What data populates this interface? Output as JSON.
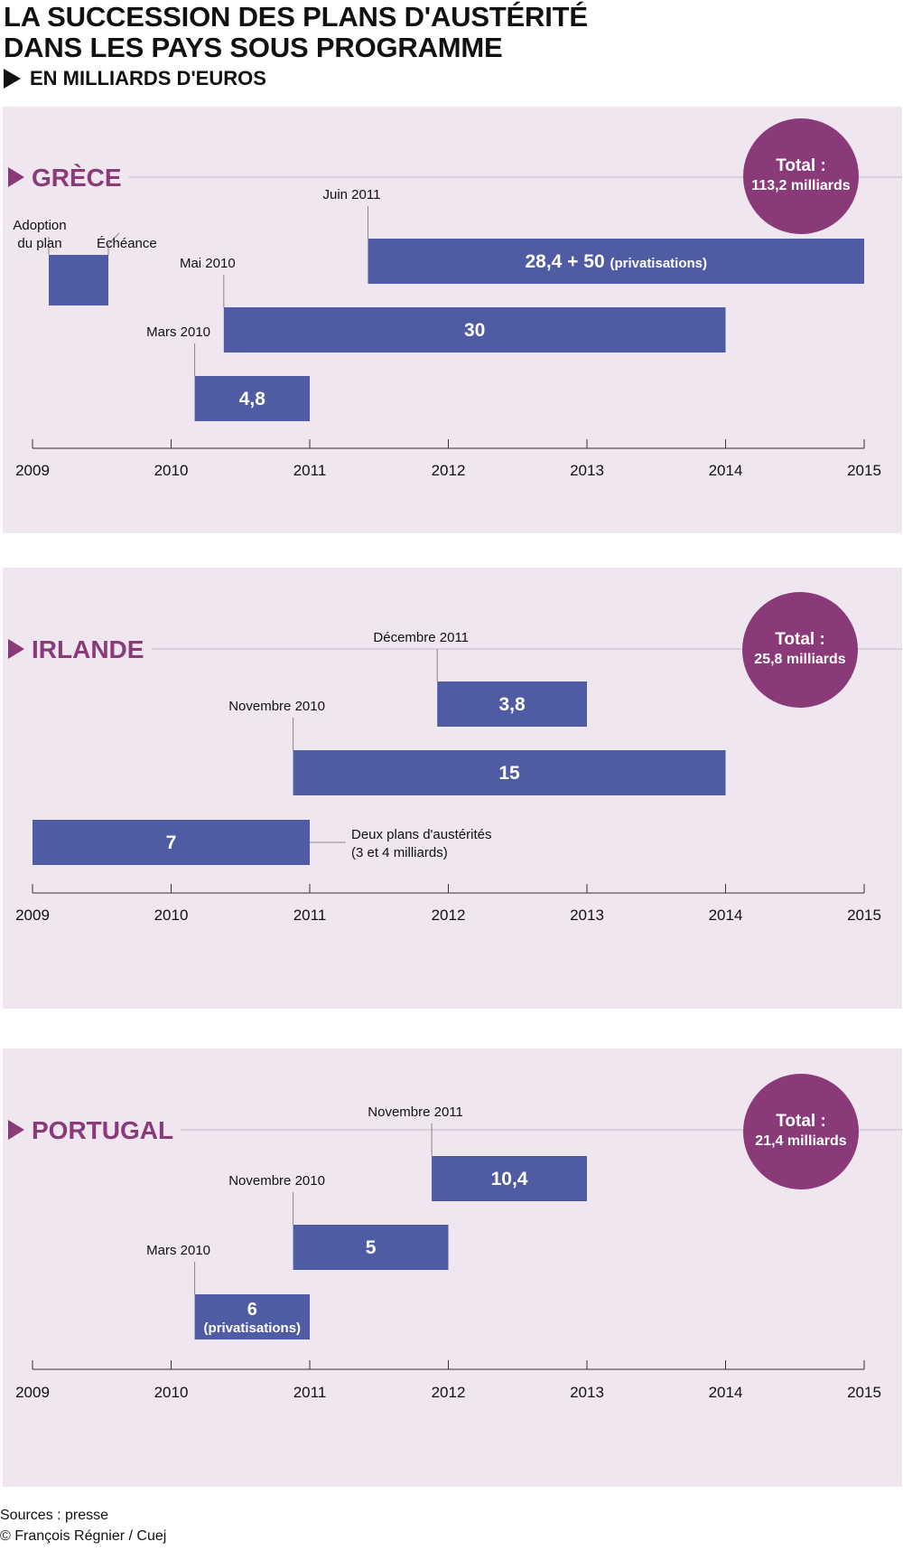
{
  "title": {
    "line1": "LA SUCCESSION DES PLANS D'AUSTÉRITÉ",
    "line2": "DANS LES PAYS SOUS PROGRAMME",
    "subtitle": "EN MILLIARDS D'EUROS"
  },
  "colors": {
    "bar": "#4f5ca3",
    "country": "#8a3a78",
    "panel_bg": "#efe6ef",
    "total_circle": "#8a3a78"
  },
  "legend": {
    "adoption_label": [
      "Adoption",
      "du plan"
    ],
    "echeance_label": "Échéance"
  },
  "chart_data": [
    {
      "type": "bar",
      "subtype": "timeline",
      "country": "GRÈCE",
      "total_label": "Total :",
      "total_value": "113,2 milliards",
      "x_ticks": [
        "2009",
        "2010",
        "2011",
        "2012",
        "2013",
        "2014",
        "2015"
      ],
      "xlim": [
        2009,
        2015
      ],
      "bars": [
        {
          "start_label": "Juin 2011",
          "start": 2011.42,
          "end": 2015.0,
          "value": "28,4 + 50",
          "note": "(privatisations)"
        },
        {
          "start_label": "Mai 2010",
          "start": 2010.38,
          "end": 2014.0,
          "value": "30",
          "note": ""
        },
        {
          "start_label": "Mars 2010",
          "start": 2010.17,
          "end": 2011.0,
          "value": "4,8",
          "note": ""
        }
      ]
    },
    {
      "type": "bar",
      "subtype": "timeline",
      "country": "IRLANDE",
      "total_label": "Total :",
      "total_value": "25,8 milliards",
      "x_ticks": [
        "2009",
        "2010",
        "2011",
        "2012",
        "2013",
        "2014",
        "2015"
      ],
      "xlim": [
        2009,
        2015
      ],
      "bars": [
        {
          "start_label": "Décembre 2011",
          "start": 2011.92,
          "end": 2013.0,
          "value": "3,8",
          "note": ""
        },
        {
          "start_label": "Novembre 2010",
          "start": 2010.88,
          "end": 2014.0,
          "value": "15",
          "note": ""
        },
        {
          "start_label": "",
          "start": 2009.0,
          "end": 2011.0,
          "value": "7",
          "note": "",
          "side_note": [
            "Deux plans d'austérités",
            "(3 et 4 milliards)"
          ]
        }
      ]
    },
    {
      "type": "bar",
      "subtype": "timeline",
      "country": "PORTUGAL",
      "total_label": "Total :",
      "total_value": "21,4 milliards",
      "x_ticks": [
        "2009",
        "2010",
        "2011",
        "2012",
        "2013",
        "2014",
        "2015"
      ],
      "xlim": [
        2009,
        2015
      ],
      "bars": [
        {
          "start_label": "Novembre 2011",
          "start": 2011.88,
          "end": 2013.0,
          "value": "10,4",
          "note": ""
        },
        {
          "start_label": "Novembre 2010",
          "start": 2010.88,
          "end": 2012.0,
          "value": "5",
          "note": ""
        },
        {
          "start_label": "Mars 2010",
          "start": 2010.17,
          "end": 2011.0,
          "value": "6",
          "note": "(privatisations)"
        }
      ]
    }
  ],
  "footer": {
    "sources": "Sources :  presse",
    "credit": "© François Régnier / Cuej"
  }
}
